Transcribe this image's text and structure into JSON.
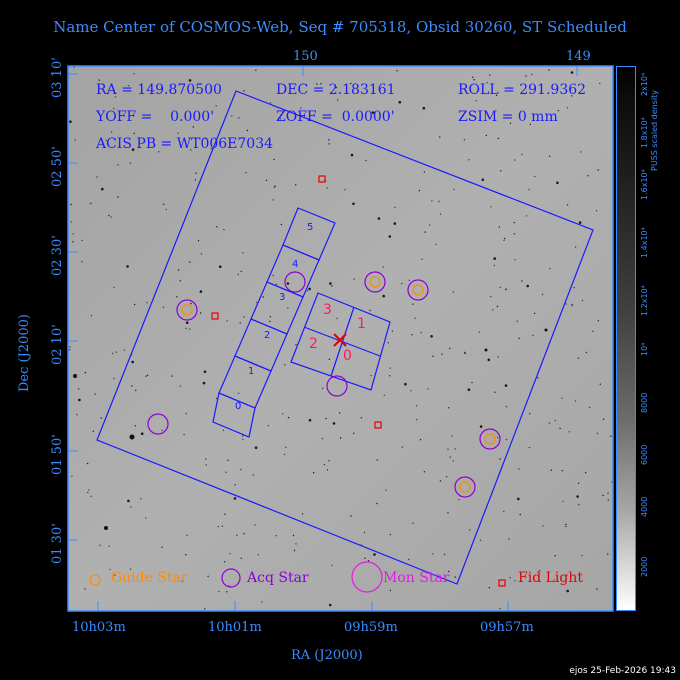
{
  "title": "Name Center of COSMOS-Web, Seq # 705318, Obsid 30260, ST Scheduled",
  "axes": {
    "x_label": "RA (J2000)",
    "y_label": "Dec (J2000)",
    "bottom_ticks": [
      "10h03m",
      "10h01m",
      "09h59m",
      "09h57m"
    ],
    "top_ticks": [
      "150",
      "149"
    ],
    "left_ticks": [
      "03 10'",
      "02 50'",
      "02 30'",
      "02 10'",
      "01 50'",
      "01 30'"
    ]
  },
  "info": {
    "ra": "RA = 149.870500",
    "dec": "DEC = 2.183161",
    "roll": "ROLL = 291.9362",
    "yoff": "YOFF =    0.000'",
    "zoff": "ZOFF =  0.0000'",
    "zsim": "ZSIM = 0 mm",
    "acis_pb": "ACIS PB = WT006E7034"
  },
  "colorbar": {
    "label": "PUSS scaled density",
    "ticks": [
      "2x10⁴",
      "1.8x10⁴",
      "1.6x10⁴",
      "1.4x10⁴",
      "1.2x10⁴",
      "10⁴",
      "8000",
      "6000",
      "4000",
      "2000"
    ]
  },
  "chips": {
    "hrc": [
      "5",
      "4",
      "3",
      "2",
      "1",
      "0"
    ],
    "acis": [
      "3",
      "1",
      "2",
      "0"
    ]
  },
  "legend": {
    "guide": "Guide Star",
    "acq": "Acq Star",
    "mon": "Mon Star",
    "fid": "Fid Light"
  },
  "colors": {
    "frame": "#3c8cff",
    "footprint": "#1a1aff",
    "guide": "#ff8c00",
    "acq": "#8c00d2",
    "mon": "#e619e6",
    "fid": "#e60000",
    "acis_label": "#ff1a5a"
  },
  "footer": "ejos 25-Feb-2026 19:43"
}
